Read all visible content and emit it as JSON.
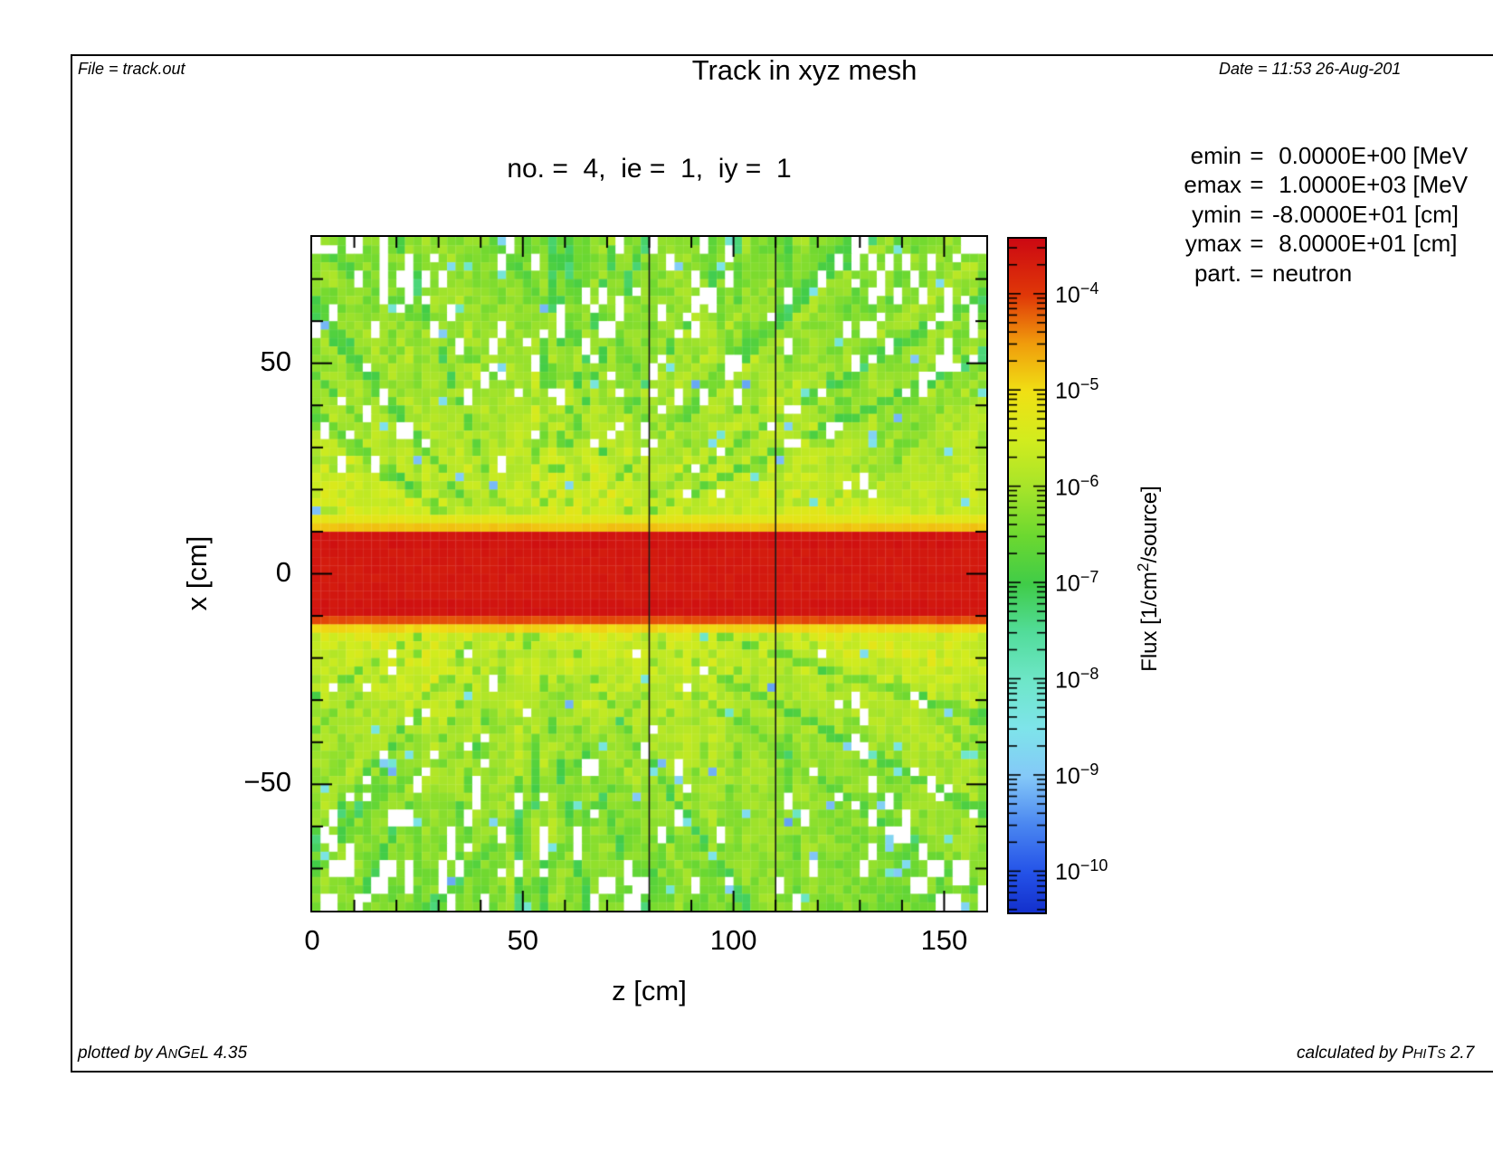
{
  "header": {
    "file_label": "File = track.out",
    "title": "Track in xyz mesh",
    "date_label": "Date = 11:53 26-Aug-201"
  },
  "subtitle": "no. =  4,  ie =  1,  iy =  1",
  "params_eq": "=",
  "params": [
    {
      "label": "emin",
      "value": " 0.0000E+00 [MeV"
    },
    {
      "label": "emax",
      "value": " 1.0000E+03 [MeV"
    },
    {
      "label": "ymin",
      "value": "-8.0000E+01 [cm]"
    },
    {
      "label": "ymax",
      "value": " 8.0000E+01 [cm]"
    },
    {
      "label": "part.",
      "value": "neutron"
    }
  ],
  "footer": {
    "left": {
      "prefix": "plotted by ",
      "name": "ANGEL",
      "small_letters": [
        1,
        3
      ],
      "version": " 4.35"
    },
    "right": {
      "prefix": "calculated by ",
      "name": "PHITS",
      "small_letters": [
        1,
        2,
        4
      ],
      "version": " 2.7"
    }
  },
  "chart_data": {
    "type": "heatmap",
    "title": "Track in xyz mesh",
    "subtitle": "no. = 4, ie = 1, iy = 1",
    "xlabel": "z [cm]",
    "ylabel": "x [cm]",
    "xlim": [
      0,
      160
    ],
    "ylim": [
      -80,
      80
    ],
    "x_ticks": [
      0,
      50,
      100,
      150
    ],
    "x_tick_labels": [
      "0",
      "50",
      "100",
      "150"
    ],
    "y_ticks": [
      50,
      0,
      -50
    ],
    "y_tick_labels": [
      "50",
      "0",
      "−50"
    ],
    "x_minor_step": 10,
    "y_minor_step": 10,
    "bins": {
      "z": 80,
      "x": 80
    },
    "region_boundaries_z": [
      80,
      110
    ],
    "colorbar": {
      "title_parts": {
        "pre": "Flux [1/cm",
        "sup": "2",
        "post": "/source]"
      },
      "scale": "log",
      "tick_exponents": [
        -4,
        -5,
        -6,
        -7,
        -8,
        -9,
        -10
      ],
      "top_exp": -3.41,
      "bottom_exp": -10.41
    },
    "colormap_stops": [
      {
        "e": -3.4,
        "c": "#cc0812"
      },
      {
        "e": -4.0,
        "c": "#e03808"
      },
      {
        "e": -4.5,
        "c": "#f09c0c"
      },
      {
        "e": -5.0,
        "c": "#f0e014"
      },
      {
        "e": -5.5,
        "c": "#d2ec1e"
      },
      {
        "e": -6.0,
        "c": "#a6e42a"
      },
      {
        "e": -6.5,
        "c": "#6cd830"
      },
      {
        "e": -7.0,
        "c": "#40cc48"
      },
      {
        "e": -7.5,
        "c": "#52dc9a"
      },
      {
        "e": -8.0,
        "c": "#6ee6c8"
      },
      {
        "e": -8.5,
        "c": "#7ee4ea"
      },
      {
        "e": -9.0,
        "c": "#84c8f8"
      },
      {
        "e": -9.5,
        "c": "#4a86f0"
      },
      {
        "e": -10.0,
        "c": "#2452e8"
      },
      {
        "e": -10.45,
        "c": "#1330cc"
      }
    ],
    "features": {
      "particle": "neutron",
      "beam_band": {
        "x_range": [
          -10,
          10
        ],
        "approx_flux": 0.0003,
        "appearance": "solid red horizontal band"
      },
      "halo_rows": {
        "upper_flux": 1.4e-05,
        "lower_flux": 7e-05,
        "appearance": "orange/yellow rows bordering beam"
      },
      "background_flux_range": [
        3e-07,
        3e-06
      ],
      "empty_cells": "white (no tally score)",
      "sparse_low_flux_cells_approx": 1e-08
    }
  }
}
